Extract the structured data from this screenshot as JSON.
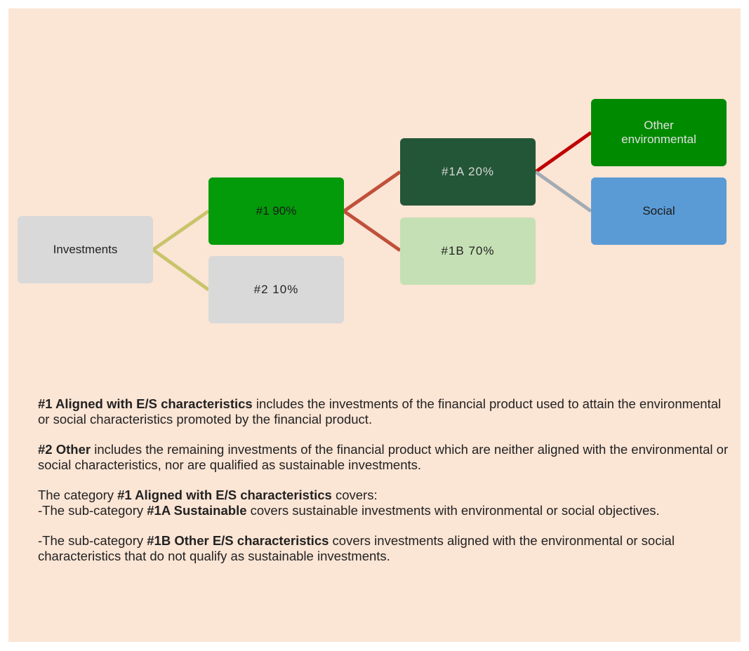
{
  "nodes": [
    {
      "label": "Investments"
    },
    {
      "label": "#1 90%"
    },
    {
      "label": "#2 10%"
    },
    {
      "label": "#1A 20%"
    },
    {
      "label": "#1B 70%"
    },
    {
      "label": "Other environmental"
    },
    {
      "label": "Social"
    }
  ],
  "paragraphs": [
    {
      "runs": [
        {
          "bold": "#1 Aligned with E/S characteristics"
        },
        {
          "text": " includes the investments of the financial product used to attain the environmental or social characteristics promoted by the financial product."
        }
      ]
    },
    {
      "runs": [
        {
          "bold": "#2 Other"
        },
        {
          "text": " includes the remaining investments of the financial product which are neither aligned with the environmental or social characteristics, nor are qualified as sustainable investments."
        }
      ]
    },
    {
      "runs": [
        {
          "text": "The category "
        },
        {
          "bold": "#1 Aligned with E/S characteristics"
        },
        {
          "text": " covers:"
        }
      ]
    },
    {
      "runs": [
        {
          "text": "-The sub-category "
        },
        {
          "bold": "#1A Sustainable"
        },
        {
          "text": " covers sustainable investments with environmental or social objectives."
        }
      ]
    },
    {
      "runs": [
        {
          "text": "-The sub-category "
        },
        {
          "bold": "#1B Other E/S characteristics"
        },
        {
          "text": " covers investments aligned with the environmental or social characteristics that do not qualify as sustainable investments."
        }
      ]
    }
  ]
}
